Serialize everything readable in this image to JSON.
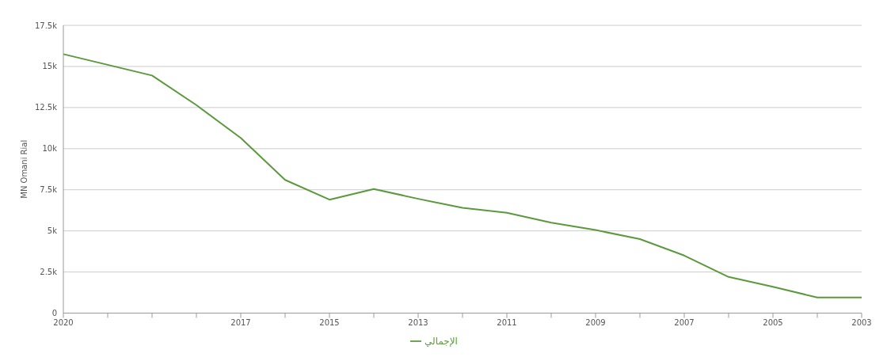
{
  "chart_data": {
    "type": "line",
    "ylabel": "MN Omani Rial",
    "categories": [
      "2020",
      null,
      null,
      null,
      "2017",
      null,
      "2015",
      null,
      "2013",
      null,
      "2011",
      null,
      "2009",
      null,
      "2007",
      null,
      "2005",
      null,
      "2003"
    ],
    "series": [
      {
        "name": "الإجمالي",
        "color": "#5a9a3c",
        "values": [
          15750,
          15100,
          14450,
          12650,
          10650,
          8100,
          6900,
          7550,
          6950,
          6400,
          6100,
          5500,
          5050,
          4500,
          3500,
          2200,
          1600,
          950,
          950
        ]
      }
    ],
    "ylim": [
      0,
      17500
    ],
    "yticks": [
      {
        "value": 0,
        "label": "0"
      },
      {
        "value": 2500,
        "label": "2.5k"
      },
      {
        "value": 5000,
        "label": "5k"
      },
      {
        "value": 7500,
        "label": "7.5k"
      },
      {
        "value": 10000,
        "label": "10k"
      },
      {
        "value": 12500,
        "label": "12.5k"
      },
      {
        "value": 15000,
        "label": "15k"
      },
      {
        "value": 17500,
        "label": "17.5k"
      }
    ],
    "grid": "y",
    "legend": "bottom",
    "marker": "none",
    "line_style": "solid"
  }
}
